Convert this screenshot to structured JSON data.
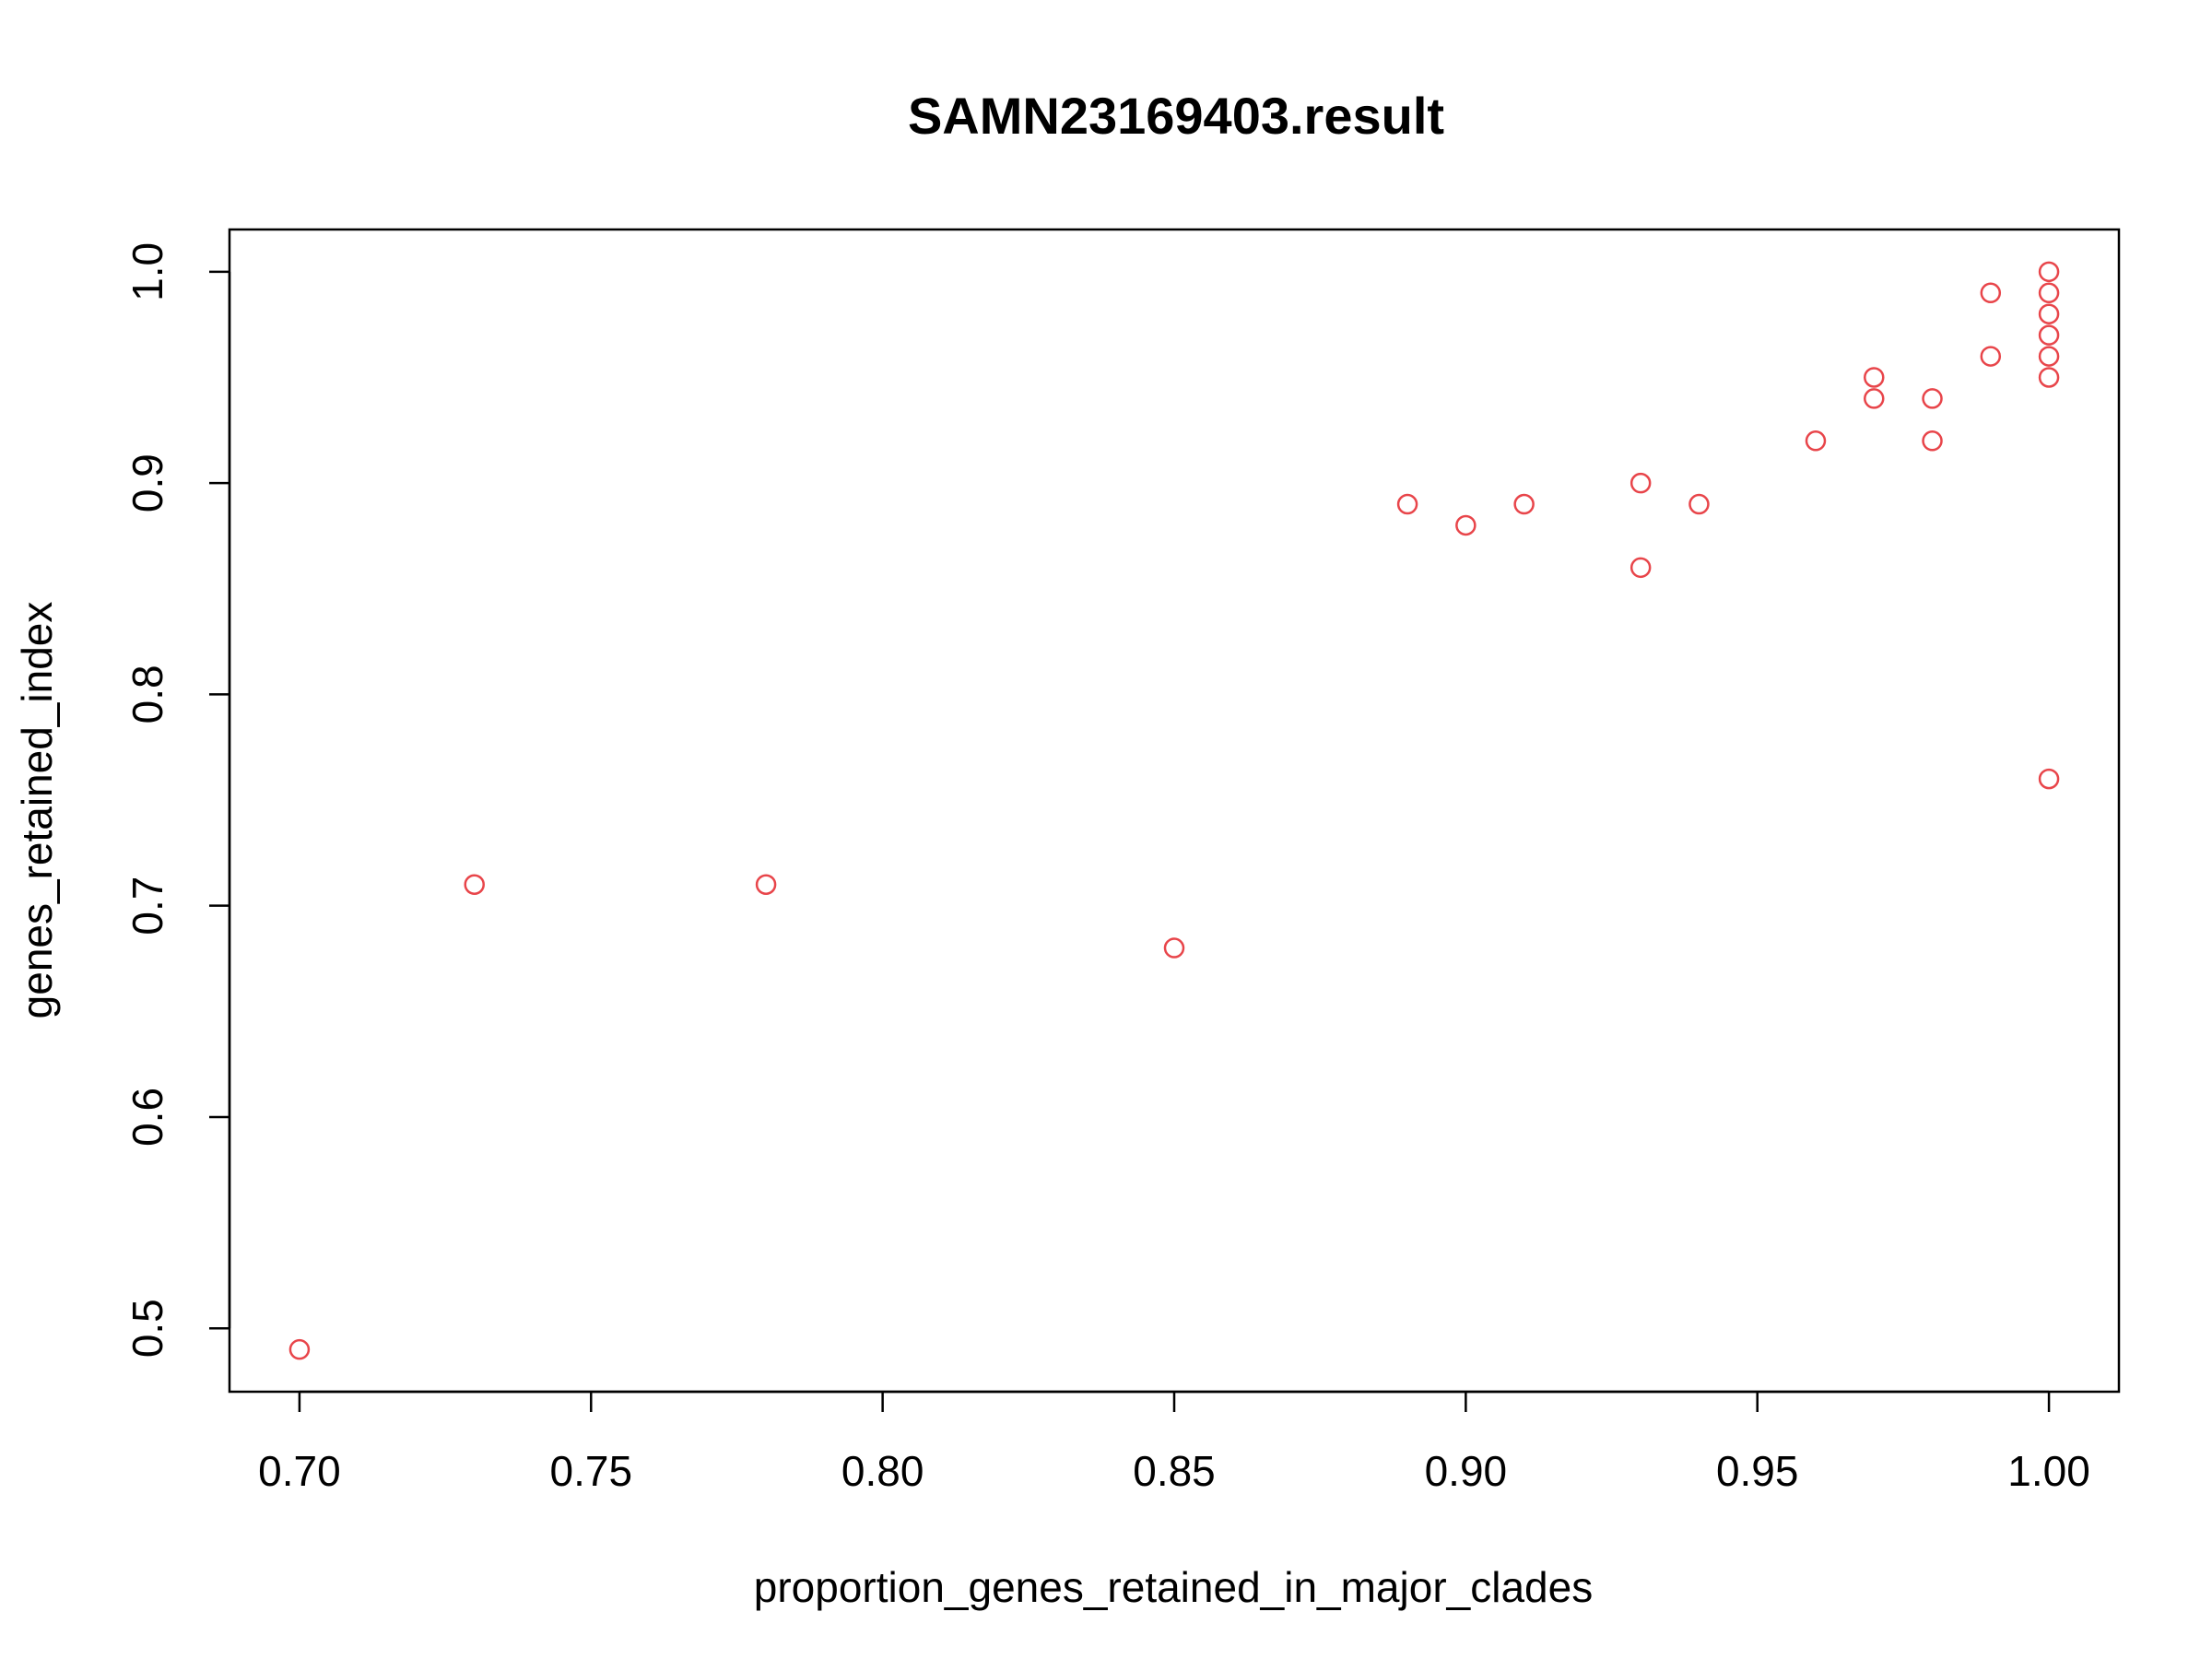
{
  "chart_data": {
    "type": "scatter",
    "title": "SAMN23169403.result",
    "xlabel": "proportion_genes_retained_in_major_clades",
    "ylabel": "genes_retained_index",
    "xlim": [
      0.688,
      1.012
    ],
    "ylim": [
      0.47,
      1.02
    ],
    "x_ticks": [
      0.7,
      0.75,
      0.8,
      0.85,
      0.9,
      0.95,
      1.0
    ],
    "x_tick_labels": [
      "0.70",
      "0.75",
      "0.80",
      "0.85",
      "0.90",
      "0.95",
      "1.00"
    ],
    "y_ticks": [
      0.5,
      0.6,
      0.7,
      0.8,
      0.9,
      1.0
    ],
    "y_tick_labels": [
      "0.5",
      "0.6",
      "0.7",
      "0.8",
      "0.9",
      "1.0"
    ],
    "grid": false,
    "marker": "open-circle",
    "point_color": "#e8454a",
    "points": [
      {
        "x": 0.7,
        "y": 0.49
      },
      {
        "x": 0.73,
        "y": 0.71
      },
      {
        "x": 0.78,
        "y": 0.71
      },
      {
        "x": 0.85,
        "y": 0.68
      },
      {
        "x": 0.89,
        "y": 0.89
      },
      {
        "x": 0.9,
        "y": 0.88
      },
      {
        "x": 0.91,
        "y": 0.89
      },
      {
        "x": 0.93,
        "y": 0.9
      },
      {
        "x": 0.93,
        "y": 0.86
      },
      {
        "x": 0.94,
        "y": 0.89
      },
      {
        "x": 0.96,
        "y": 0.92
      },
      {
        "x": 0.97,
        "y": 0.95
      },
      {
        "x": 0.97,
        "y": 0.94
      },
      {
        "x": 0.98,
        "y": 0.94
      },
      {
        "x": 0.98,
        "y": 0.92
      },
      {
        "x": 0.99,
        "y": 0.99
      },
      {
        "x": 0.99,
        "y": 0.96
      },
      {
        "x": 1.0,
        "y": 1.0
      },
      {
        "x": 1.0,
        "y": 0.99
      },
      {
        "x": 1.0,
        "y": 0.98
      },
      {
        "x": 1.0,
        "y": 0.97
      },
      {
        "x": 1.0,
        "y": 0.96
      },
      {
        "x": 1.0,
        "y": 0.95
      },
      {
        "x": 1.0,
        "y": 0.76
      }
    ]
  }
}
